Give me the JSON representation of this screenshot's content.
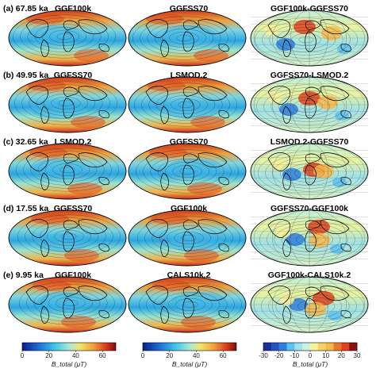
{
  "rows": [
    {
      "label": "(a) 67.85 ka",
      "panels": [
        "GGF100k",
        "GGFSS70",
        "GGF100k-GGFSS70"
      ]
    },
    {
      "label": "(b) 49.95 ka",
      "panels": [
        "GGFSS70",
        "LSMOD.2",
        "GGFSS70-LSMOD.2"
      ]
    },
    {
      "label": "(c) 32.65 ka",
      "panels": [
        "LSMOD.2",
        "GGFSS70",
        "LSMOD.2-GGFSS70"
      ]
    },
    {
      "label": "(d) 17.55 ka",
      "panels": [
        "GGFSS70",
        "GGF100k",
        "GGFSS70-GGF100k"
      ]
    },
    {
      "label": "(e) 9.95 ka",
      "panels": [
        "GGF100k",
        "CALS10k.2",
        "GGF100k-CALS10k.2"
      ]
    }
  ],
  "colorbars": [
    {
      "ticks": [
        "0",
        "20",
        "40",
        "60"
      ],
      "label": "B_total (μT)"
    },
    {
      "ticks": [
        "0",
        "20",
        "40",
        "60"
      ],
      "label": "B_total (μT)"
    },
    {
      "ticks": [
        "-30",
        "-20",
        "-10",
        "0",
        "10",
        "20",
        "30"
      ],
      "label": "B_total (μT)"
    }
  ],
  "colors": {
    "field_ramp": [
      "#0a1f8f",
      "#1a6fd6",
      "#3fc6e8",
      "#a8e8d8",
      "#f3e36a",
      "#f0a03a",
      "#d6391c",
      "#7a0d0d"
    ],
    "diff_ramp": [
      "#1b2f9a",
      "#2e7fdc",
      "#5cc2f0",
      "#c9f0e0",
      "#f6f19a",
      "#f6b84a",
      "#e0431d",
      "#8a1010"
    ],
    "outline": "#000000"
  }
}
